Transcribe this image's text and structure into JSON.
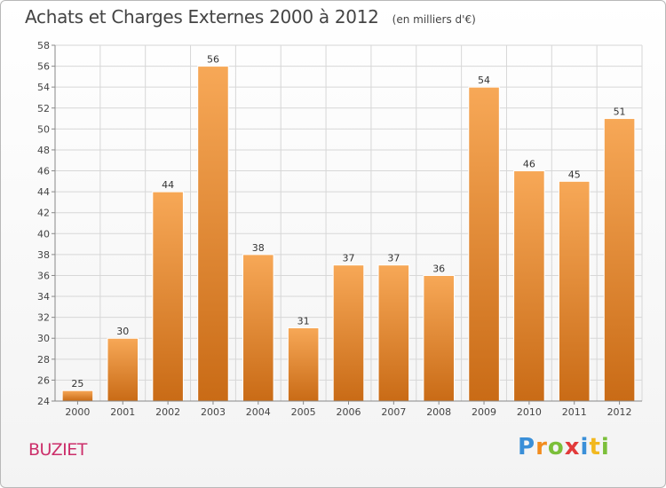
{
  "header": {
    "title": "Achats et Charges Externes 2000 à 2012",
    "unit": "(en milliers d'€)"
  },
  "footer": {
    "commune": "BUZIET",
    "logo_letters": [
      "P",
      "r",
      "o",
      "x",
      "i",
      "t",
      "i"
    ],
    "logo_colors": [
      "#3a8fd8",
      "#f28c1e",
      "#7bbf3a",
      "#e23a3a",
      "#3a8fd8",
      "#f2b81e",
      "#7bbf3a"
    ]
  },
  "chart_data": {
    "type": "bar",
    "title": "Achats et Charges Externes 2000 à 2012",
    "subtitle": "(en milliers d'€)",
    "xlabel": "",
    "ylabel": "",
    "categories": [
      "2000",
      "2001",
      "2002",
      "2003",
      "2004",
      "2005",
      "2006",
      "2007",
      "2008",
      "2009",
      "2010",
      "2011",
      "2012"
    ],
    "values": [
      25,
      30,
      44,
      56,
      38,
      31,
      37,
      37,
      36,
      54,
      46,
      45,
      51
    ],
    "ylim": [
      24,
      58
    ],
    "yticks": [
      24,
      26,
      28,
      30,
      32,
      34,
      36,
      38,
      40,
      42,
      44,
      46,
      48,
      50,
      52,
      54,
      56,
      58
    ],
    "grid": true,
    "data_labels": true,
    "bar_color_top": "#f7a857",
    "bar_color_bottom": "#c96b16",
    "grid_color": "#d7d7d7"
  }
}
